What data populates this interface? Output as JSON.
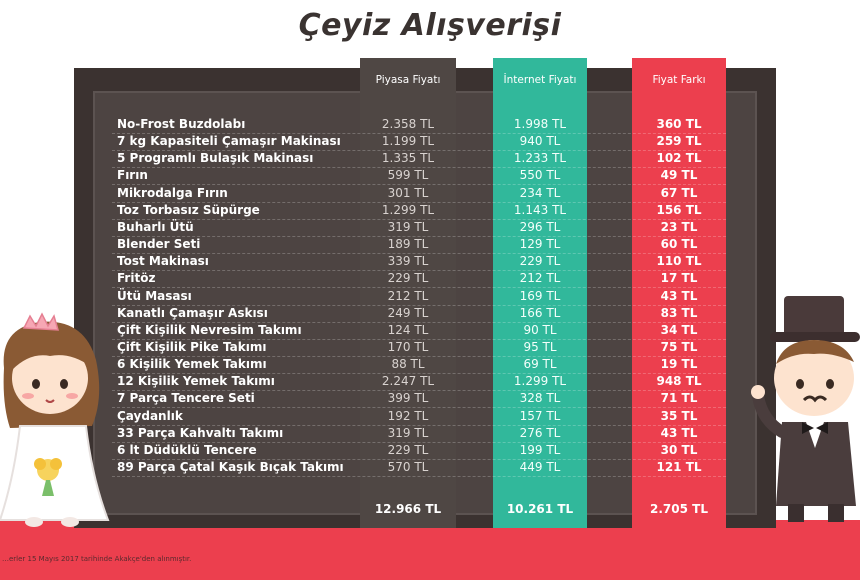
{
  "title": "Çeyiz Alışverişi",
  "columns": {
    "market": "Piyasa Fiyatı",
    "internet": "İnternet Fiyatı",
    "diff": "Fiyat Farkı"
  },
  "colors": {
    "board": "#3b3230",
    "market_column": "#4f4744",
    "internet_column": "#31b89b",
    "diff_column": "#ec3f4e",
    "floor": "#ec3f4e"
  },
  "footnote": "…erler 15 Mayıs 2017 tarihinde Akakçe'den alınmıştır.",
  "chart_data": {
    "type": "table",
    "title": "Çeyiz Alışverişi",
    "headers": [
      "",
      "Piyasa Fiyatı",
      "İnternet Fiyatı",
      "Fiyat Farkı"
    ],
    "rows": [
      {
        "item": "No-Frost Buzdolabı",
        "market": "2.358 TL",
        "internet": "1.998 TL",
        "diff": "360 TL"
      },
      {
        "item": "7 kg Kapasiteli Çamaşır Makinası",
        "market": "1.199 TL",
        "internet": "940 TL",
        "diff": "259 TL"
      },
      {
        "item": "5 Programlı Bulaşık Makinası",
        "market": "1.335 TL",
        "internet": "1.233 TL",
        "diff": "102 TL"
      },
      {
        "item": "Fırın",
        "market": "599 TL",
        "internet": "550 TL",
        "diff": "49 TL"
      },
      {
        "item": "Mikrodalga Fırın",
        "market": "301 TL",
        "internet": "234 TL",
        "diff": "67 TL"
      },
      {
        "item": "Toz Torbasız Süpürge",
        "market": "1.299 TL",
        "internet": "1.143 TL",
        "diff": "156 TL"
      },
      {
        "item": "Buharlı Ütü",
        "market": "319 TL",
        "internet": "296 TL",
        "diff": "23 TL"
      },
      {
        "item": "Blender Seti",
        "market": "189 TL",
        "internet": "129 TL",
        "diff": "60 TL"
      },
      {
        "item": "Tost Makinası",
        "market": "339 TL",
        "internet": "229 TL",
        "diff": "110 TL"
      },
      {
        "item": "Fritöz",
        "market": "229 TL",
        "internet": "212 TL",
        "diff": "17 TL"
      },
      {
        "item": "Ütü Masası",
        "market": "212 TL",
        "internet": "169 TL",
        "diff": "43 TL"
      },
      {
        "item": "Kanatlı Çamaşır Askısı",
        "market": "249 TL",
        "internet": "166 TL",
        "diff": "83 TL"
      },
      {
        "item": "Çift Kişilik Nevresim Takımı",
        "market": "124 TL",
        "internet": "90 TL",
        "diff": "34 TL"
      },
      {
        "item": "Çift Kişilik Pike Takımı",
        "market": "170 TL",
        "internet": "95 TL",
        "diff": "75 TL"
      },
      {
        "item": "6 Kişilik Yemek Takımı",
        "market": "88 TL",
        "internet": "69 TL",
        "diff": "19 TL"
      },
      {
        "item": "12 Kişilik Yemek Takımı",
        "market": "2.247 TL",
        "internet": "1.299 TL",
        "diff": "948 TL"
      },
      {
        "item": "7 Parça Tencere Seti",
        "market": "399 TL",
        "internet": "328 TL",
        "diff": "71 TL"
      },
      {
        "item": "Çaydanlık",
        "market": "192 TL",
        "internet": "157 TL",
        "diff": "35 TL"
      },
      {
        "item": "33 Parça Kahvaltı Takımı",
        "market": "319 TL",
        "internet": "276 TL",
        "diff": "43 TL"
      },
      {
        "item": "6 lt Düdüklü Tencere",
        "market": "229 TL",
        "internet": "199 TL",
        "diff": "30 TL"
      },
      {
        "item": "89 Parça Çatal Kaşık Bıçak Takımı",
        "market": "570 TL",
        "internet": "449 TL",
        "diff": "121 TL"
      }
    ],
    "totals": {
      "market": "12.966 TL",
      "internet": "10.261 TL",
      "diff": "2.705 TL"
    }
  }
}
